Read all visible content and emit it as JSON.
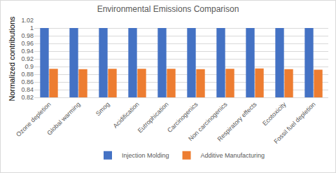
{
  "chart_data": {
    "type": "bar",
    "title": "Environmental Emissions Comparison",
    "y_label": "Normalized contributions",
    "categories": [
      "Ozone depletion",
      "Global warming",
      "Smog",
      "Acidification",
      "Eutrophication",
      "Carcinogenics",
      "Non carcinogenics",
      "Respiratory effects",
      "Ecotoxicity",
      "Fossil fuel depletion"
    ],
    "series": [
      {
        "name": "Injection Molding",
        "color": "#4472c4",
        "values": [
          1,
          1,
          1,
          1,
          1,
          1,
          1,
          1,
          1,
          1
        ]
      },
      {
        "name": "Additive Manufacturing",
        "color": "#ed7d31",
        "values": [
          0.894,
          0.893,
          0.894,
          0.894,
          0.894,
          0.893,
          0.894,
          0.895,
          0.893,
          0.892
        ]
      }
    ],
    "ylim": [
      0.82,
      1.02
    ],
    "yticks": [
      0.82,
      0.84,
      0.86,
      0.88,
      0.9,
      0.92,
      0.94,
      0.96,
      0.98,
      1,
      1.02
    ],
    "grid": true,
    "legend": "bottom"
  }
}
